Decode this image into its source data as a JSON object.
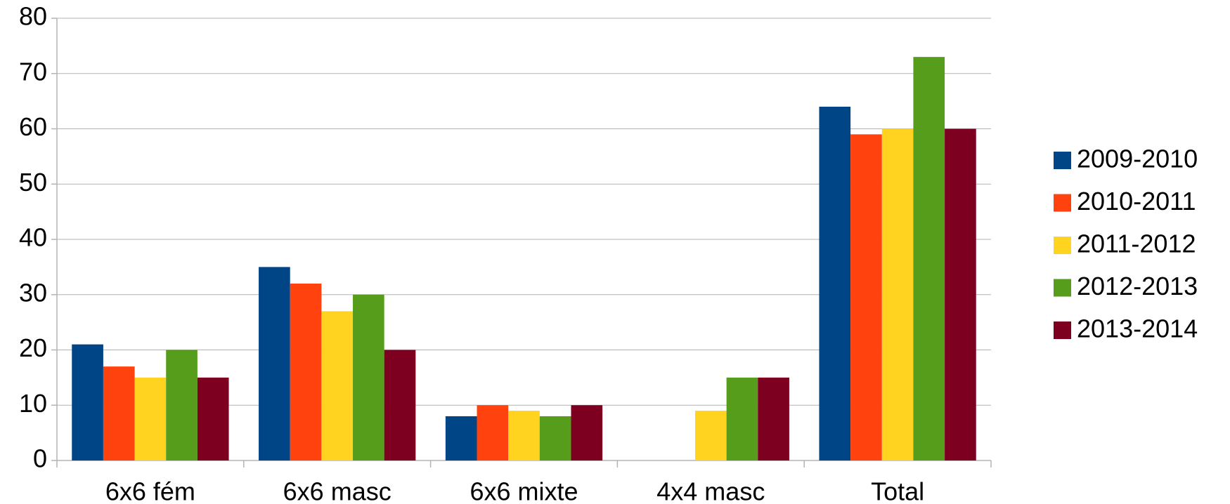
{
  "chart_data": {
    "type": "bar",
    "categories": [
      "6x6 fém",
      "6x6 masc",
      "6x6 mixte",
      "4x4 masc",
      "Total"
    ],
    "series": [
      {
        "name": "2009-2010",
        "color": "#004586",
        "values": [
          21,
          35,
          8,
          null,
          64
        ]
      },
      {
        "name": "2010-2011",
        "color": "#ff420e",
        "values": [
          17,
          32,
          10,
          null,
          59
        ]
      },
      {
        "name": "2011-2012",
        "color": "#ffd320",
        "values": [
          15,
          27,
          9,
          9,
          60
        ]
      },
      {
        "name": "2012-2013",
        "color": "#579d1c",
        "values": [
          20,
          30,
          8,
          15,
          73
        ]
      },
      {
        "name": "2013-2014",
        "color": "#7e0021",
        "values": [
          15,
          20,
          10,
          15,
          60
        ]
      }
    ],
    "ylim": [
      0,
      80
    ],
    "yticks": [
      0,
      10,
      20,
      30,
      40,
      50,
      60,
      70,
      80
    ],
    "grid": true,
    "legend": "right"
  }
}
